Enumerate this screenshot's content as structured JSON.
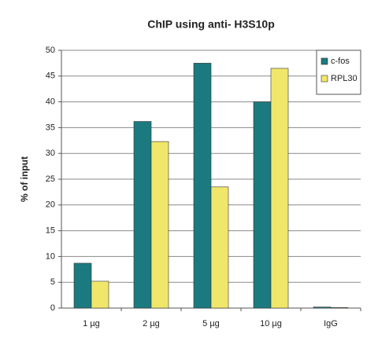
{
  "chart_data": {
    "type": "bar",
    "title": "ChIP using anti- H3S10p",
    "y_label": "% of input",
    "categories": [
      "1 µg",
      "2 µg",
      "5 µg",
      "10 µg",
      "IgG"
    ],
    "series": [
      {
        "name": "c-fos",
        "color": "#1b7a80",
        "values": [
          8.7,
          36.2,
          47.5,
          40,
          0.2
        ]
      },
      {
        "name": "RPL30",
        "color": "#f0e66a",
        "values": [
          5.2,
          32.3,
          23.5,
          46.5,
          0.1
        ]
      }
    ],
    "ylim": [
      0,
      50
    ],
    "yticks": [
      0,
      5,
      10,
      15,
      20,
      25,
      30,
      35,
      40,
      45,
      50
    ],
    "grid": true,
    "legend": "top-right"
  }
}
